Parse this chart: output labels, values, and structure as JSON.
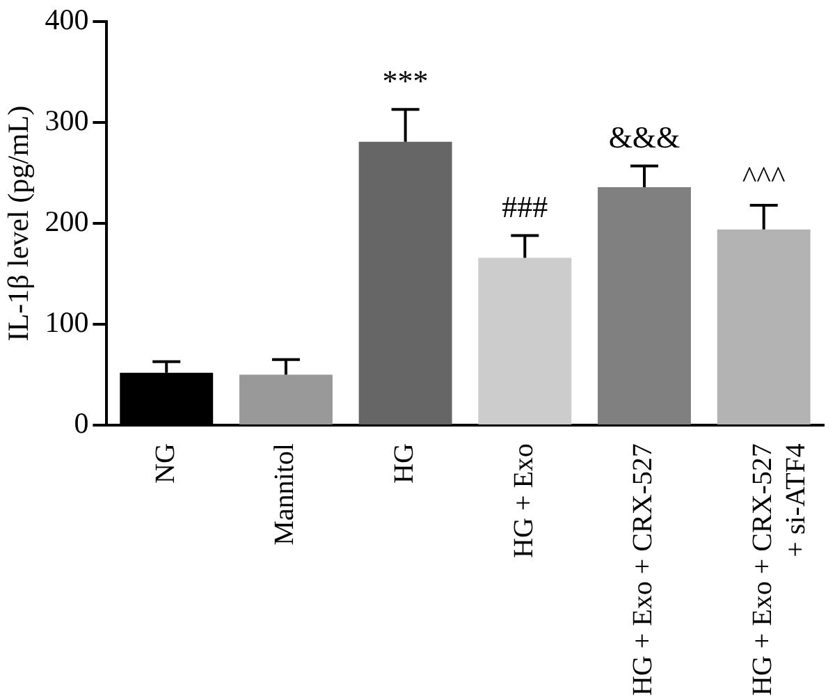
{
  "chart_data": {
    "type": "bar",
    "ylabel": "IL-1β level (pg/mL)",
    "categories": [
      "NG",
      "Mannitol",
      "HG",
      "HG + Exo",
      "HG + Exo + CRX-527",
      "HG + Exo + CRX-527\n+ si-ATF4"
    ],
    "values": [
      52,
      50,
      281,
      166,
      236,
      194
    ],
    "colors": [
      "#000000",
      "#999999",
      "#666666",
      "#cccccc",
      "#808080",
      "#b3b3b3"
    ],
    "errors": [
      [
        52,
        63
      ],
      [
        50,
        65
      ],
      [
        281,
        313
      ],
      [
        166,
        188
      ],
      [
        236,
        257
      ],
      [
        194,
        218
      ]
    ],
    "ylim": [
      0,
      400
    ],
    "yticks": [
      0,
      100,
      200,
      300,
      400
    ],
    "grid": false,
    "legend": false,
    "annotations": [
      {
        "text": "***",
        "x": "HG",
        "y": 313
      },
      {
        "text": "###",
        "x": "HG + Exo",
        "y": 188
      },
      {
        "text": "&&&",
        "x": "HG + Exo + CRX-527",
        "y": 257
      },
      {
        "text": "^^^",
        "x": "HG + Exo + CRX-527\n+ si-ATF4",
        "y": 218
      }
    ]
  }
}
